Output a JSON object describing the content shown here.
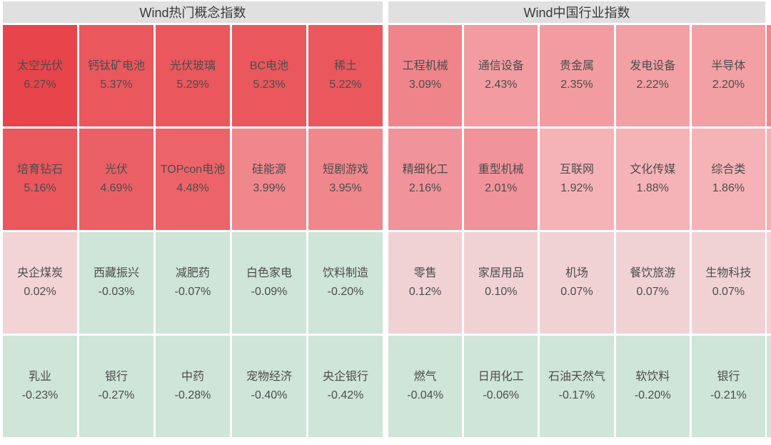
{
  "colors": {
    "page_bg": "#ffffff",
    "header_bg": "#e0e0e0",
    "header_text": "#3a3a3a",
    "tile_text": "#4d4d4d"
  },
  "panels": [
    {
      "title": "Wind热门概念指数",
      "tiles": [
        {
          "name": "太空光伏",
          "value": "6.27%",
          "bg": "#e8444b"
        },
        {
          "name": "钙钛矿电池",
          "value": "5.37%",
          "bg": "#ea575d"
        },
        {
          "name": "光伏玻璃",
          "value": "5.29%",
          "bg": "#ea575d"
        },
        {
          "name": "BC电池",
          "value": "5.23%",
          "bg": "#ea575d"
        },
        {
          "name": "稀土",
          "value": "5.22%",
          "bg": "#ea575d"
        },
        {
          "name": "培育钻石",
          "value": "5.16%",
          "bg": "#ea575d"
        },
        {
          "name": "光伏",
          "value": "4.69%",
          "bg": "#eb6066"
        },
        {
          "name": "TOPcon电池",
          "value": "4.48%",
          "bg": "#ec6469"
        },
        {
          "name": "硅能源",
          "value": "3.99%",
          "bg": "#f0878c"
        },
        {
          "name": "短剧游戏",
          "value": "3.95%",
          "bg": "#f0878c"
        },
        {
          "name": "央企煤炭",
          "value": "0.02%",
          "bg": "#f2d3d6"
        },
        {
          "name": "西藏振兴",
          "value": "-0.03%",
          "bg": "#cee5d7"
        },
        {
          "name": "减肥药",
          "value": "-0.07%",
          "bg": "#cee5d7"
        },
        {
          "name": "白色家电",
          "value": "-0.09%",
          "bg": "#cee5d7"
        },
        {
          "name": "饮料制造",
          "value": "-0.20%",
          "bg": "#cee5d7"
        },
        {
          "name": "乳业",
          "value": "-0.23%",
          "bg": "#cee5d7"
        },
        {
          "name": "银行",
          "value": "-0.27%",
          "bg": "#cee5d7"
        },
        {
          "name": "中药",
          "value": "-0.28%",
          "bg": "#cee5d7"
        },
        {
          "name": "宠物经济",
          "value": "-0.40%",
          "bg": "#cee5d7"
        },
        {
          "name": "央企银行",
          "value": "-0.42%",
          "bg": "#cee5d7"
        }
      ]
    },
    {
      "title": "Wind中国行业指数",
      "tiles": [
        {
          "name": "工程机械",
          "value": "3.09%",
          "bg": "#ef858b"
        },
        {
          "name": "通信设备",
          "value": "2.43%",
          "bg": "#f29ca1"
        },
        {
          "name": "贵金属",
          "value": "2.35%",
          "bg": "#f29ca1"
        },
        {
          "name": "发电设备",
          "value": "2.22%",
          "bg": "#f2a0a4"
        },
        {
          "name": "半导体",
          "value": "2.20%",
          "bg": "#f2a0a4"
        },
        {
          "name": "精细化工",
          "value": "2.16%",
          "bg": "#f0939a"
        },
        {
          "name": "重型机械",
          "value": "2.01%",
          "bg": "#f0939a"
        },
        {
          "name": "互联网",
          "value": "1.92%",
          "bg": "#f5b3b7"
        },
        {
          "name": "文化传媒",
          "value": "1.88%",
          "bg": "#f5b3b7"
        },
        {
          "name": "综合类",
          "value": "1.86%",
          "bg": "#f5b3b7"
        },
        {
          "name": "零售",
          "value": "0.12%",
          "bg": "#f0d2d5"
        },
        {
          "name": "家居用品",
          "value": "0.10%",
          "bg": "#f0d2d5"
        },
        {
          "name": "机场",
          "value": "0.07%",
          "bg": "#f0d2d5"
        },
        {
          "name": "餐饮旅游",
          "value": "0.07%",
          "bg": "#f0d2d5"
        },
        {
          "name": "生物科技",
          "value": "0.07%",
          "bg": "#f0d2d5"
        },
        {
          "name": "燃气",
          "value": "-0.04%",
          "bg": "#cee5d7"
        },
        {
          "name": "日用化工",
          "value": "-0.06%",
          "bg": "#cee5d7"
        },
        {
          "name": "石油天然气",
          "value": "-0.17%",
          "bg": "#cee5d7"
        },
        {
          "name": "软饮料",
          "value": "-0.20%",
          "bg": "#cee5d7"
        },
        {
          "name": "银行",
          "value": "-0.21%",
          "bg": "#cee5d7"
        }
      ]
    }
  ],
  "edge_sliver": {
    "colors": [
      "#ef888d",
      "#f4b1b5",
      "#f0d2d5",
      "#cee5d7"
    ]
  },
  "chart_data": [
    {
      "type": "heatmap",
      "title": "Wind热门概念指数",
      "unit": "%",
      "layout": "5x4",
      "cells": [
        {
          "label": "太空光伏",
          "value": 6.27
        },
        {
          "label": "钙钛矿电池",
          "value": 5.37
        },
        {
          "label": "光伏玻璃",
          "value": 5.29
        },
        {
          "label": "BC电池",
          "value": 5.23
        },
        {
          "label": "稀土",
          "value": 5.22
        },
        {
          "label": "培育钻石",
          "value": 5.16
        },
        {
          "label": "光伏",
          "value": 4.69
        },
        {
          "label": "TOPcon电池",
          "value": 4.48
        },
        {
          "label": "硅能源",
          "value": 3.99
        },
        {
          "label": "短剧游戏",
          "value": 3.95
        },
        {
          "label": "央企煤炭",
          "value": 0.02
        },
        {
          "label": "西藏振兴",
          "value": -0.03
        },
        {
          "label": "减肥药",
          "value": -0.07
        },
        {
          "label": "白色家电",
          "value": -0.09
        },
        {
          "label": "饮料制造",
          "value": -0.2
        },
        {
          "label": "乳业",
          "value": -0.23
        },
        {
          "label": "银行",
          "value": -0.27
        },
        {
          "label": "中药",
          "value": -0.28
        },
        {
          "label": "宠物经济",
          "value": -0.4
        },
        {
          "label": "央企银行",
          "value": -0.42
        }
      ]
    },
    {
      "type": "heatmap",
      "title": "Wind中国行业指数",
      "unit": "%",
      "layout": "5x4",
      "cells": [
        {
          "label": "工程机械",
          "value": 3.09
        },
        {
          "label": "通信设备",
          "value": 2.43
        },
        {
          "label": "贵金属",
          "value": 2.35
        },
        {
          "label": "发电设备",
          "value": 2.22
        },
        {
          "label": "半导体",
          "value": 2.2
        },
        {
          "label": "精细化工",
          "value": 2.16
        },
        {
          "label": "重型机械",
          "value": 2.01
        },
        {
          "label": "互联网",
          "value": 1.92
        },
        {
          "label": "文化传媒",
          "value": 1.88
        },
        {
          "label": "综合类",
          "value": 1.86
        },
        {
          "label": "零售",
          "value": 0.12
        },
        {
          "label": "家居用品",
          "value": 0.1
        },
        {
          "label": "机场",
          "value": 0.07
        },
        {
          "label": "餐饮旅游",
          "value": 0.07
        },
        {
          "label": "生物科技",
          "value": 0.07
        },
        {
          "label": "燃气",
          "value": -0.04
        },
        {
          "label": "日用化工",
          "value": -0.06
        },
        {
          "label": "石油天然气",
          "value": -0.17
        },
        {
          "label": "软饮料",
          "value": -0.2
        },
        {
          "label": "银行",
          "value": -0.21
        }
      ]
    }
  ]
}
